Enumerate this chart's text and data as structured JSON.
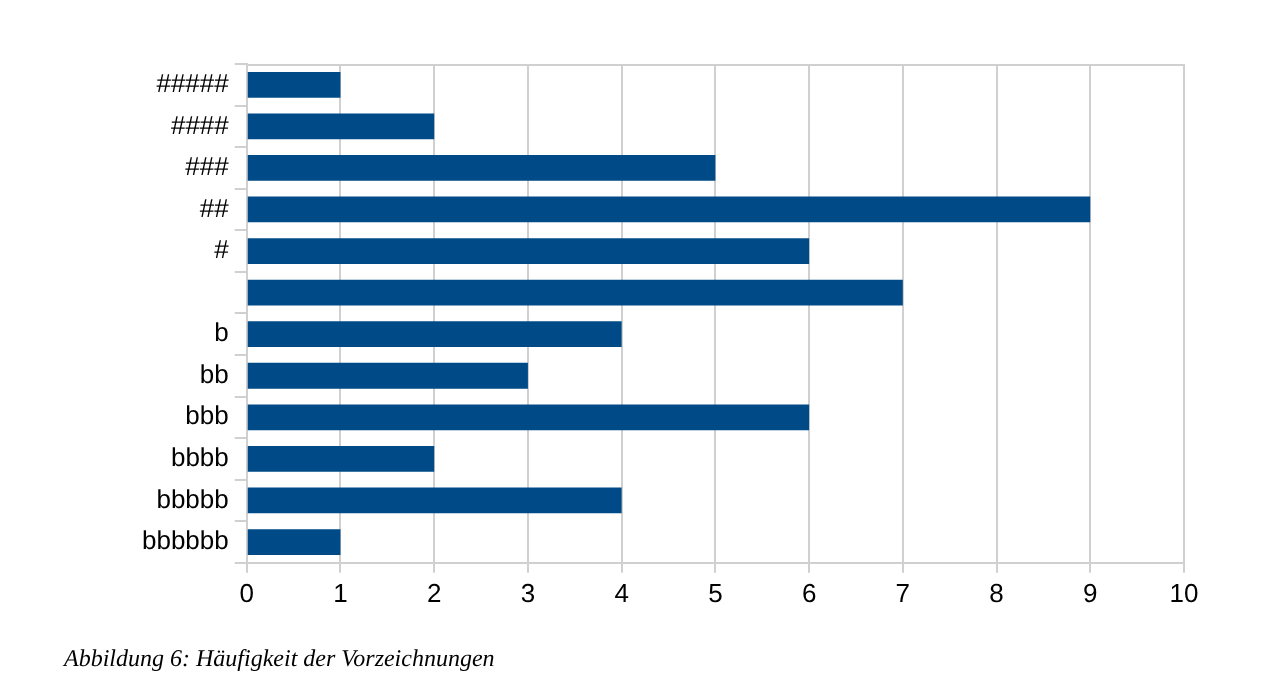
{
  "chart_data": {
    "type": "bar",
    "orientation": "horizontal",
    "categories": [
      "#####",
      "####",
      "###",
      "##",
      "#",
      null,
      "b",
      "bb",
      "bbb",
      "bbbb",
      "bbbbb",
      "bbbbbb"
    ],
    "values": [
      1,
      2,
      5,
      9,
      6,
      7,
      4,
      3,
      6,
      2,
      4,
      1
    ],
    "color": "#004b87",
    "xlim": [
      0,
      10
    ],
    "xticks": [
      0,
      1,
      2,
      3,
      4,
      5,
      6,
      7,
      8,
      9,
      10
    ],
    "grid": "x",
    "legend": false,
    "annotations": [
      "Abbildung 6: Häufigkeit der Vorzeichnungen"
    ]
  }
}
